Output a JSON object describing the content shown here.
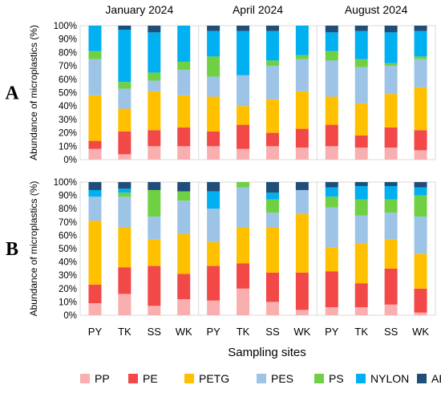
{
  "chart_data": {
    "type": "bar",
    "stacked": "percent",
    "periods": [
      "January 2024",
      "April 2024",
      "August 2024"
    ],
    "categories": [
      "PY",
      "TK",
      "SS",
      "WK"
    ],
    "xlabel": "Sampling sites",
    "ylabel": "Abundance of microplastics (%)",
    "ylim": [
      0,
      100
    ],
    "yticks": [
      "0%",
      "10%",
      "20%",
      "30%",
      "40%",
      "50%",
      "60%",
      "70%",
      "80%",
      "90%",
      "100%"
    ],
    "grid": false,
    "legend_position": "bottom",
    "series": [
      {
        "name": "PP",
        "color": "#F9AFAF"
      },
      {
        "name": "PE",
        "color": "#F24848"
      },
      {
        "name": "PETG",
        "color": "#FFC000"
      },
      {
        "name": "PES",
        "color": "#9DC3E6"
      },
      {
        "name": "PS",
        "color": "#70D044"
      },
      {
        "name": "NYLON",
        "color": "#00B0F0"
      },
      {
        "name": "AES",
        "color": "#1F4E79"
      }
    ],
    "panels": [
      {
        "label": "A",
        "values": [
          [
            8,
            6,
            34,
            27,
            6,
            19,
            0
          ],
          [
            4,
            17,
            17,
            15,
            5,
            39,
            3
          ],
          [
            10,
            12,
            29,
            8,
            6,
            30,
            5
          ],
          [
            10,
            14,
            24,
            19,
            6,
            27,
            0
          ],
          [
            10,
            11,
            26,
            15,
            15,
            19,
            4
          ],
          [
            8,
            18,
            14,
            23,
            0,
            33,
            4
          ],
          [
            10,
            10,
            25,
            25,
            4,
            22,
            4
          ],
          [
            9,
            14,
            28,
            24,
            3,
            22,
            0
          ],
          [
            10,
            16,
            21,
            27,
            7,
            14,
            5
          ],
          [
            9,
            9,
            24,
            27,
            6,
            21,
            4
          ],
          [
            9,
            15,
            25,
            21,
            2,
            23,
            5
          ],
          [
            7,
            15,
            32,
            21,
            2,
            19,
            4
          ]
        ]
      },
      {
        "label": "B",
        "values": [
          [
            9,
            14,
            48,
            18,
            0,
            5,
            6
          ],
          [
            16,
            20,
            30,
            23,
            3,
            3,
            5
          ],
          [
            7,
            30,
            20,
            17,
            20,
            0,
            6
          ],
          [
            12,
            19,
            30,
            25,
            7,
            0,
            7
          ],
          [
            11,
            26,
            18,
            25,
            0,
            13,
            7
          ],
          [
            20,
            19,
            27,
            30,
            4,
            0,
            0
          ],
          [
            10,
            22,
            34,
            11,
            10,
            5,
            8
          ],
          [
            4,
            28,
            44,
            18,
            0,
            0,
            6
          ],
          [
            6,
            27,
            18,
            30,
            8,
            7,
            4
          ],
          [
            6,
            18,
            30,
            21,
            12,
            10,
            3
          ],
          [
            8,
            27,
            22,
            20,
            10,
            10,
            3
          ],
          [
            2,
            18,
            26,
            28,
            16,
            6,
            4
          ]
        ]
      }
    ]
  }
}
